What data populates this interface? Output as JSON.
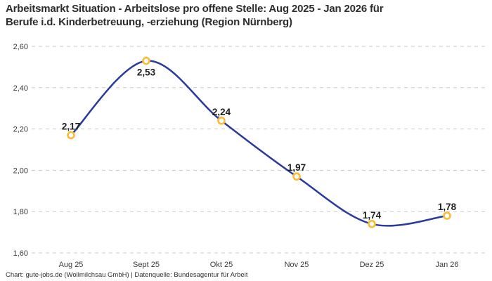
{
  "title": {
    "lines": [
      "Arbeitsmarkt Situation - Arbeitslose pro offene Stelle: Aug 2025 - Jan 2026 für",
      "Berufe i.d. Kinderbetreuung, -erziehung (Region Nürnberg)"
    ]
  },
  "footer": {
    "text": "Chart: gute-jobs.de (Wollmilchsau GmbH) | Datenquelle: Bundesagentur für Arbeit"
  },
  "chart_data": {
    "type": "line",
    "title": "Arbeitsmarkt Situation - Arbeitslose pro offene Stelle: Aug 2025 - Jan 2026 für Berufe i.d. Kinderbetreuung, -erziehung (Region Nürnberg)",
    "categories": [
      "Aug 25",
      "Sept 25",
      "Okt 25",
      "Nov 25",
      "Dez 25",
      "Jan 26"
    ],
    "values": [
      2.17,
      2.53,
      2.24,
      1.97,
      1.74,
      1.78
    ],
    "value_labels": [
      "2,17",
      "2,53",
      "2,24",
      "1,97",
      "1,74",
      "1,78"
    ],
    "label_side": [
      "above",
      "below",
      "above",
      "above",
      "above",
      "above"
    ],
    "xlabel": "",
    "ylabel": "",
    "ylim": [
      1.6,
      2.6
    ],
    "yticks": [
      {
        "value": 2.6,
        "label": "2,60"
      },
      {
        "value": 2.4,
        "label": "2,40"
      },
      {
        "value": 2.2,
        "label": "2,20"
      },
      {
        "value": 2.0,
        "label": "2,00"
      },
      {
        "value": 1.8,
        "label": "1,80"
      },
      {
        "value": 1.6,
        "label": "1,60"
      }
    ],
    "grid": "horizontal-dashed",
    "legend": "none",
    "smooth": true,
    "colors": {
      "line": "#2a3a9e",
      "marker_ring": "#f9bc33",
      "marker_fill": "#ffffff",
      "gridline": "#c9c9c9",
      "tick_text": "#3a3a3a",
      "label_text": "#1f1f1f",
      "background": "#ffffff"
    }
  }
}
